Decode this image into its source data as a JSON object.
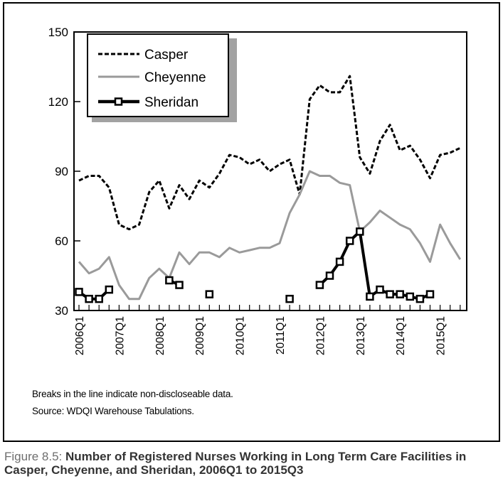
{
  "notes": {
    "breaks": "Breaks in the line indicate non-discloseable data.",
    "source": "Source: WDQI Warehouse Tabulations."
  },
  "caption": {
    "figure_label": "Figure 8.5:",
    "title": "Number of Registered Nurses Working in Long Term Care Facilities in Casper, Cheyenne, and Sheridan, 2006Q1 to 2015Q3"
  },
  "chart_data": {
    "type": "line",
    "title": "Number of Registered Nurses Working in Long Term Care Facilities in Casper, Cheyenne, and Sheridan, 2006Q1 to 2015Q3",
    "xlabel": "",
    "ylabel": "",
    "ylim": [
      30,
      150
    ],
    "yticks": [
      30,
      60,
      90,
      120,
      150
    ],
    "grid": false,
    "legend_position": "top-left",
    "x": [
      "2006Q1",
      "2006Q2",
      "2006Q3",
      "2006Q4",
      "2007Q1",
      "2007Q2",
      "2007Q3",
      "2007Q4",
      "2008Q1",
      "2008Q2",
      "2008Q3",
      "2008Q4",
      "2009Q1",
      "2009Q2",
      "2009Q3",
      "2009Q4",
      "2010Q1",
      "2010Q2",
      "2010Q3",
      "2010Q4",
      "2011Q1",
      "2011Q2",
      "2011Q3",
      "2011Q4",
      "2012Q1",
      "2012Q2",
      "2012Q3",
      "2012Q4",
      "2013Q1",
      "2013Q2",
      "2013Q3",
      "2013Q4",
      "2014Q1",
      "2014Q2",
      "2014Q3",
      "2014Q4",
      "2015Q1",
      "2015Q2",
      "2015Q3"
    ],
    "x_tick_labels": [
      "2006Q1",
      "2007Q1",
      "2008Q1",
      "2009Q1",
      "2010Q1",
      "2011Q1",
      "2012Q1",
      "2013Q1",
      "2014Q1",
      "2015Q1"
    ],
    "series": [
      {
        "name": "Casper",
        "style": "dashed",
        "color": "#000000",
        "values": [
          86,
          88,
          88,
          83,
          67,
          65,
          67,
          81,
          86,
          74,
          84,
          78,
          86,
          83,
          89,
          97,
          96,
          93,
          95,
          90,
          93,
          95,
          80,
          121,
          127,
          124,
          124,
          131,
          96,
          89,
          103,
          110,
          99,
          101,
          95,
          87,
          97,
          98,
          100
        ]
      },
      {
        "name": "Cheyenne",
        "style": "solid",
        "color": "#9a9a9a",
        "values": [
          51,
          46,
          48,
          53,
          41,
          35,
          35,
          44,
          48,
          44,
          55,
          50,
          55,
          55,
          53,
          57,
          55,
          56,
          57,
          57,
          59,
          72,
          80,
          90,
          88,
          88,
          85,
          84,
          64,
          68,
          73,
          70,
          67,
          65,
          59,
          51,
          67,
          59,
          52
        ]
      },
      {
        "name": "Sheridan",
        "style": "solid-square-markers",
        "color": "#000000",
        "values": [
          38,
          35,
          35,
          39,
          null,
          null,
          null,
          null,
          null,
          43,
          41,
          null,
          null,
          37,
          null,
          null,
          null,
          null,
          null,
          null,
          null,
          35,
          null,
          null,
          41,
          45,
          51,
          60,
          64,
          36,
          39,
          37,
          37,
          36,
          35,
          37,
          null,
          null,
          null
        ]
      }
    ]
  }
}
